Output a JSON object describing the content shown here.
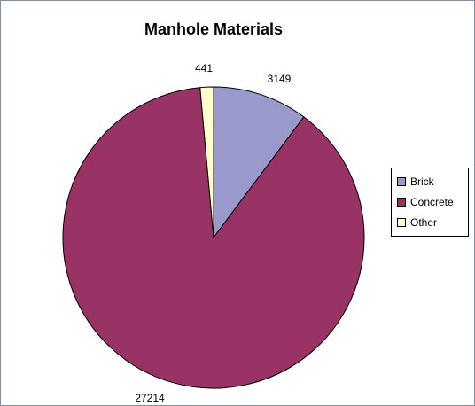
{
  "chart_data": {
    "type": "pie",
    "title": "Manhole Materials",
    "categories": [
      "Brick",
      "Concrete",
      "Other"
    ],
    "values": [
      3149,
      27214,
      441
    ],
    "colors": [
      "#9999cc",
      "#993366",
      "#ffffcc"
    ],
    "data_labels": [
      "3149",
      "27214",
      "441"
    ],
    "legend_position": "right"
  }
}
